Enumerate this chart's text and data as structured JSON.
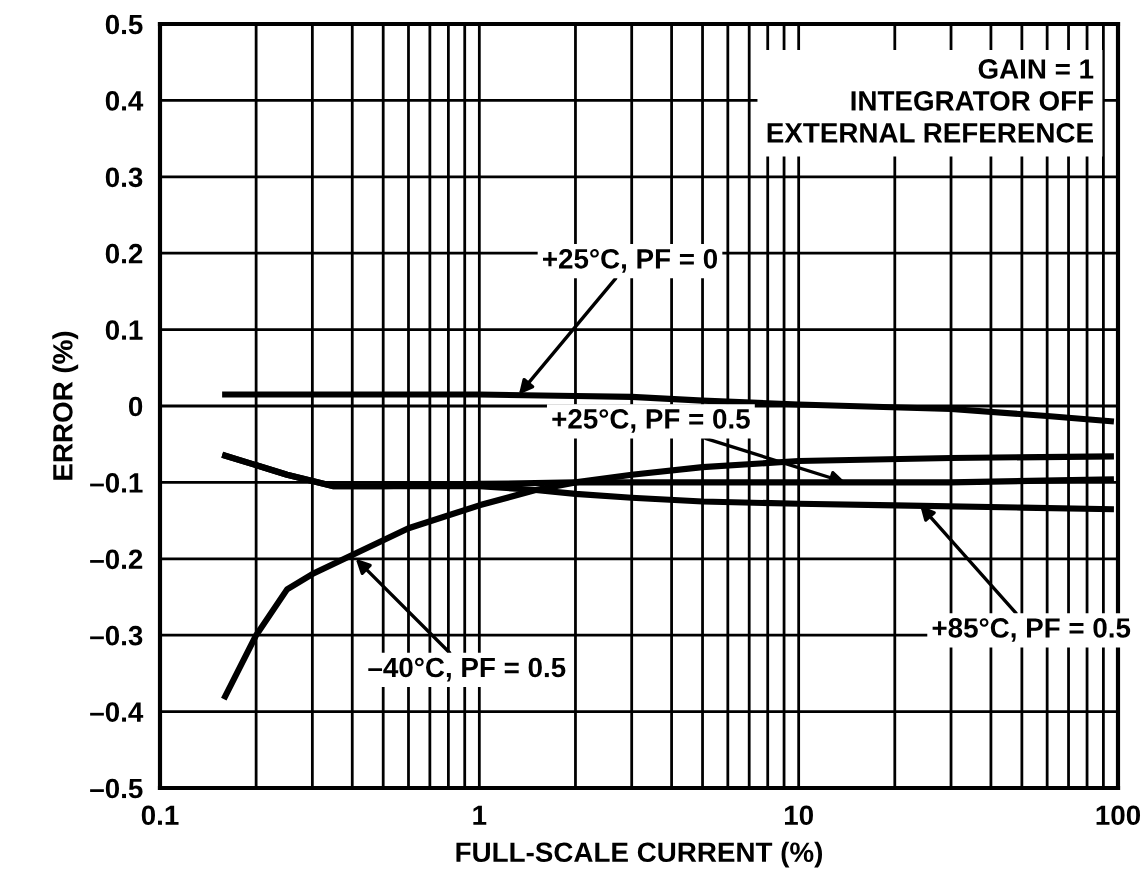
{
  "chart_data": {
    "type": "line",
    "xlabel": "FULL-SCALE CURRENT (%)",
    "ylabel": "ERROR (%)",
    "log": "x",
    "grid": true,
    "legend": false,
    "marker": "none",
    "line_style": "solid",
    "xlim": [
      0.1,
      100
    ],
    "xticks": [
      0.1,
      1,
      10,
      100
    ],
    "ylim": [
      -0.5,
      0.5
    ],
    "yticks": [
      {
        "value": -0.5,
        "label": "–0.5"
      },
      {
        "value": -0.4,
        "label": "–0.4"
      },
      {
        "value": -0.3,
        "label": "–0.3"
      },
      {
        "value": -0.2,
        "label": "–0.2"
      },
      {
        "value": -0.1,
        "label": "–0.1"
      },
      0,
      0.1,
      0.2,
      0.3,
      0.4,
      0.5
    ],
    "series": [
      {
        "color": "#000000",
        "x": [
          0.16,
          0.5,
          1,
          2,
          3,
          5,
          10,
          30,
          60,
          95
        ],
        "values": [
          0.015,
          0.015,
          0.015,
          0.013,
          0.012,
          0.007,
          0.002,
          -0.004,
          -0.013,
          -0.02
        ]
      },
      {
        "color": "#000000",
        "x": [
          0.16,
          0.2,
          0.25,
          0.3,
          0.4,
          0.6,
          1,
          1.5,
          2,
          3,
          5,
          10,
          30,
          95
        ],
        "values": [
          -0.38,
          -0.3,
          -0.24,
          -0.22,
          -0.195,
          -0.16,
          -0.13,
          -0.11,
          -0.1,
          -0.09,
          -0.08,
          -0.072,
          -0.068,
          -0.066
        ]
      },
      {
        "color": "#000000",
        "x": [
          0.16,
          0.25,
          0.35,
          0.5,
          1,
          2,
          5,
          10,
          30,
          95
        ],
        "values": [
          -0.065,
          -0.09,
          -0.105,
          -0.105,
          -0.102,
          -0.1,
          -0.1,
          -0.1,
          -0.1,
          -0.096
        ]
      },
      {
        "color": "#000000",
        "x": [
          0.16,
          0.25,
          0.35,
          0.5,
          1,
          1.5,
          2,
          3,
          5,
          10,
          20,
          50,
          95
        ],
        "values": [
          -0.065,
          -0.09,
          -0.105,
          -0.105,
          -0.105,
          -0.11,
          -0.115,
          -0.12,
          -0.125,
          -0.128,
          -0.13,
          -0.133,
          -0.135
        ]
      }
    ],
    "annotations": [
      {
        "text": "+25°C, PF = 0",
        "x": 1.33,
        "y": 0.015
      },
      {
        "text": "+25°C, PF = 0.5",
        "x": 14,
        "y": -0.1
      },
      {
        "text": "+85°C, PF = 0.5",
        "x": 24,
        "y": -0.13
      },
      {
        "text": "–40°C, PF = 0.5",
        "x": 0.41,
        "y": -0.2
      },
      "GAIN = 1\nINTEGRATOR OFF\nEXTERNAL REFERENCE"
    ]
  }
}
